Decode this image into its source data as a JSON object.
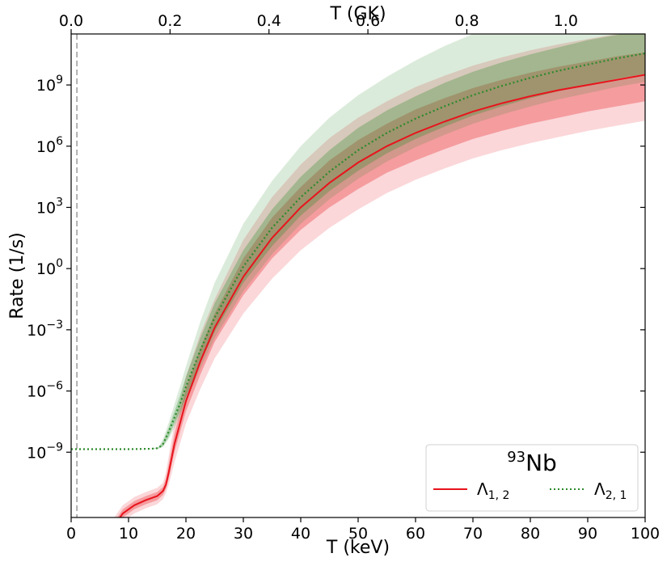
{
  "chart_data": {
    "type": "line",
    "xlabel": "T (keV)",
    "ylabel": "Rate (1/s)",
    "x2label": "T (GK)",
    "xlim": [
      0,
      100
    ],
    "ylim_log10": [
      -12.2,
      11.5
    ],
    "x2lim": [
      0,
      1.1605
    ],
    "x_ticks": [
      0,
      10,
      20,
      30,
      40,
      50,
      60,
      70,
      80,
      90,
      100
    ],
    "x_tick_labels": [
      "0",
      "10",
      "20",
      "30",
      "40",
      "50",
      "60",
      "70",
      "80",
      "90",
      "100"
    ],
    "x2_ticks": [
      0.0,
      0.2,
      0.4,
      0.6,
      0.8,
      1.0
    ],
    "x2_tick_labels": [
      "0.0",
      "0.2",
      "0.4",
      "0.6",
      "0.8",
      "1.0"
    ],
    "y_ticks_log10": [
      9,
      6,
      3,
      0,
      -3,
      -6,
      -9
    ],
    "y_tick_labels": [
      {
        "base": "10",
        "exp": "9"
      },
      {
        "base": "10",
        "exp": "6"
      },
      {
        "base": "10",
        "exp": "3"
      },
      {
        "base": "10",
        "exp": "0"
      },
      {
        "base": "10",
        "exp": "−3"
      },
      {
        "base": "10",
        "exp": "−6"
      },
      {
        "base": "10",
        "exp": "−9"
      }
    ],
    "yscale": "log",
    "grid": false,
    "vline_x": 1.0,
    "legend": {
      "placement": "bottom-right",
      "title_sup": "93",
      "title_main": "Nb",
      "entries": [
        {
          "sym": "Λ",
          "sub": "1, 2",
          "color": "#e8141c",
          "style": "solid"
        },
        {
          "sym": "Λ",
          "sub": "2, 1",
          "color": "#2a8a2a",
          "style": "dotted"
        }
      ]
    },
    "series": [
      {
        "color": "#e8141c",
        "style": "solid",
        "x": [
          5.5,
          7,
          9,
          11,
          13,
          15,
          16,
          16.5,
          17,
          18,
          20,
          22.5,
          25,
          30,
          35,
          40,
          45,
          50,
          55,
          60,
          65,
          70,
          75,
          80,
          85,
          90,
          95,
          100
        ],
        "log10": [
          -14,
          -12.8,
          -12,
          -11.6,
          -11.35,
          -11.15,
          -10.9,
          -10.6,
          -10.0,
          -8.6,
          -6.5,
          -4.55,
          -2.9,
          -0.4,
          1.5,
          3.0,
          4.2,
          5.2,
          6.0,
          6.65,
          7.2,
          7.7,
          8.1,
          8.45,
          8.75,
          9.0,
          9.25,
          9.5
        ],
        "band_inner": {
          "low": [
            -14,
            -13,
            -12.2,
            -11.8,
            -11.55,
            -11.35,
            -11.1,
            -10.8,
            -10.3,
            -9.0,
            -7.0,
            -5.2,
            -3.6,
            -1.3,
            0.5,
            1.9,
            3.0,
            3.9,
            4.7,
            5.3,
            5.85,
            6.35,
            6.75,
            7.1,
            7.4,
            7.7,
            7.95,
            8.2
          ],
          "high": [
            -14,
            -12.6,
            -11.8,
            -11.4,
            -11.15,
            -10.95,
            -10.7,
            -10.3,
            -9.6,
            -8.1,
            -5.9,
            -3.9,
            -2.2,
            0.5,
            2.5,
            4.0,
            5.3,
            6.3,
            7.1,
            7.8,
            8.35,
            8.85,
            9.25,
            9.6,
            9.9,
            10.15,
            10.4,
            10.6
          ]
        },
        "band_outer": {
          "low": [
            -14,
            -13.2,
            -12.4,
            -12.0,
            -11.75,
            -11.55,
            -11.3,
            -11.0,
            -10.6,
            -9.5,
            -7.6,
            -5.9,
            -4.4,
            -2.2,
            -0.5,
            0.9,
            2.0,
            2.9,
            3.7,
            4.35,
            4.9,
            5.4,
            5.8,
            6.15,
            6.45,
            6.75,
            7.0,
            7.25
          ],
          "high": [
            -14,
            -12.4,
            -11.6,
            -11.2,
            -10.95,
            -10.75,
            -10.5,
            -10.0,
            -9.2,
            -7.6,
            -5.3,
            -3.2,
            -1.5,
            1.4,
            3.5,
            5.1,
            6.4,
            7.4,
            8.2,
            8.9,
            9.45,
            9.95,
            10.35,
            10.7,
            11.0,
            11.25,
            11.5,
            11.7
          ]
        }
      },
      {
        "color": "#2a8a2a",
        "style": "dotted",
        "x": [
          0,
          5,
          10,
          14,
          15.2,
          16,
          17,
          18,
          19,
          20,
          22.5,
          25,
          30,
          35,
          40,
          45,
          50,
          55,
          60,
          65,
          70,
          75,
          80,
          85,
          90,
          95,
          100
        ],
        "log10": [
          -8.85,
          -8.85,
          -8.85,
          -8.83,
          -8.8,
          -8.6,
          -8.0,
          -7.3,
          -6.6,
          -5.8,
          -4.0,
          -2.4,
          0.1,
          2.0,
          3.5,
          4.75,
          5.8,
          6.65,
          7.35,
          7.95,
          8.5,
          8.95,
          9.35,
          9.7,
          10.0,
          10.3,
          10.55
        ],
        "band_inner": {
          "low": [
            -8.85,
            -8.85,
            -8.85,
            -8.83,
            -8.82,
            -8.7,
            -8.25,
            -7.6,
            -7.0,
            -6.3,
            -4.6,
            -3.1,
            -0.7,
            1.1,
            2.6,
            3.8,
            4.8,
            5.65,
            6.35,
            6.95,
            7.5,
            7.95,
            8.35,
            8.7,
            9.0,
            9.3,
            9.55
          ],
          "high": [
            -8.85,
            -8.85,
            -8.85,
            -8.83,
            -8.78,
            -8.5,
            -7.8,
            -7.0,
            -6.2,
            -5.3,
            -3.4,
            -1.7,
            0.9,
            2.9,
            4.5,
            5.8,
            6.9,
            7.75,
            8.45,
            9.1,
            9.65,
            10.1,
            10.5,
            10.85,
            11.2,
            11.45,
            11.7
          ]
        },
        "band_outer": {
          "low": [
            -8.85,
            -8.85,
            -8.85,
            -8.84,
            -8.83,
            -8.75,
            -8.35,
            -7.8,
            -7.2,
            -6.5,
            -4.9,
            -3.4,
            -1.1,
            0.7,
            2.2,
            3.4,
            4.4,
            5.25,
            5.95,
            6.55,
            7.1,
            7.55,
            7.95,
            8.3,
            8.6,
            8.9,
            9.15
          ],
          "high": [
            -8.85,
            -8.85,
            -8.85,
            -8.82,
            -8.75,
            -8.35,
            -7.55,
            -6.65,
            -5.75,
            -4.8,
            -2.6,
            -0.7,
            2.2,
            4.3,
            6.0,
            7.4,
            8.5,
            9.4,
            10.2,
            10.9,
            11.5,
            12.0,
            12.4,
            12.8,
            13.1,
            13.4,
            13.6
          ]
        }
      }
    ]
  }
}
